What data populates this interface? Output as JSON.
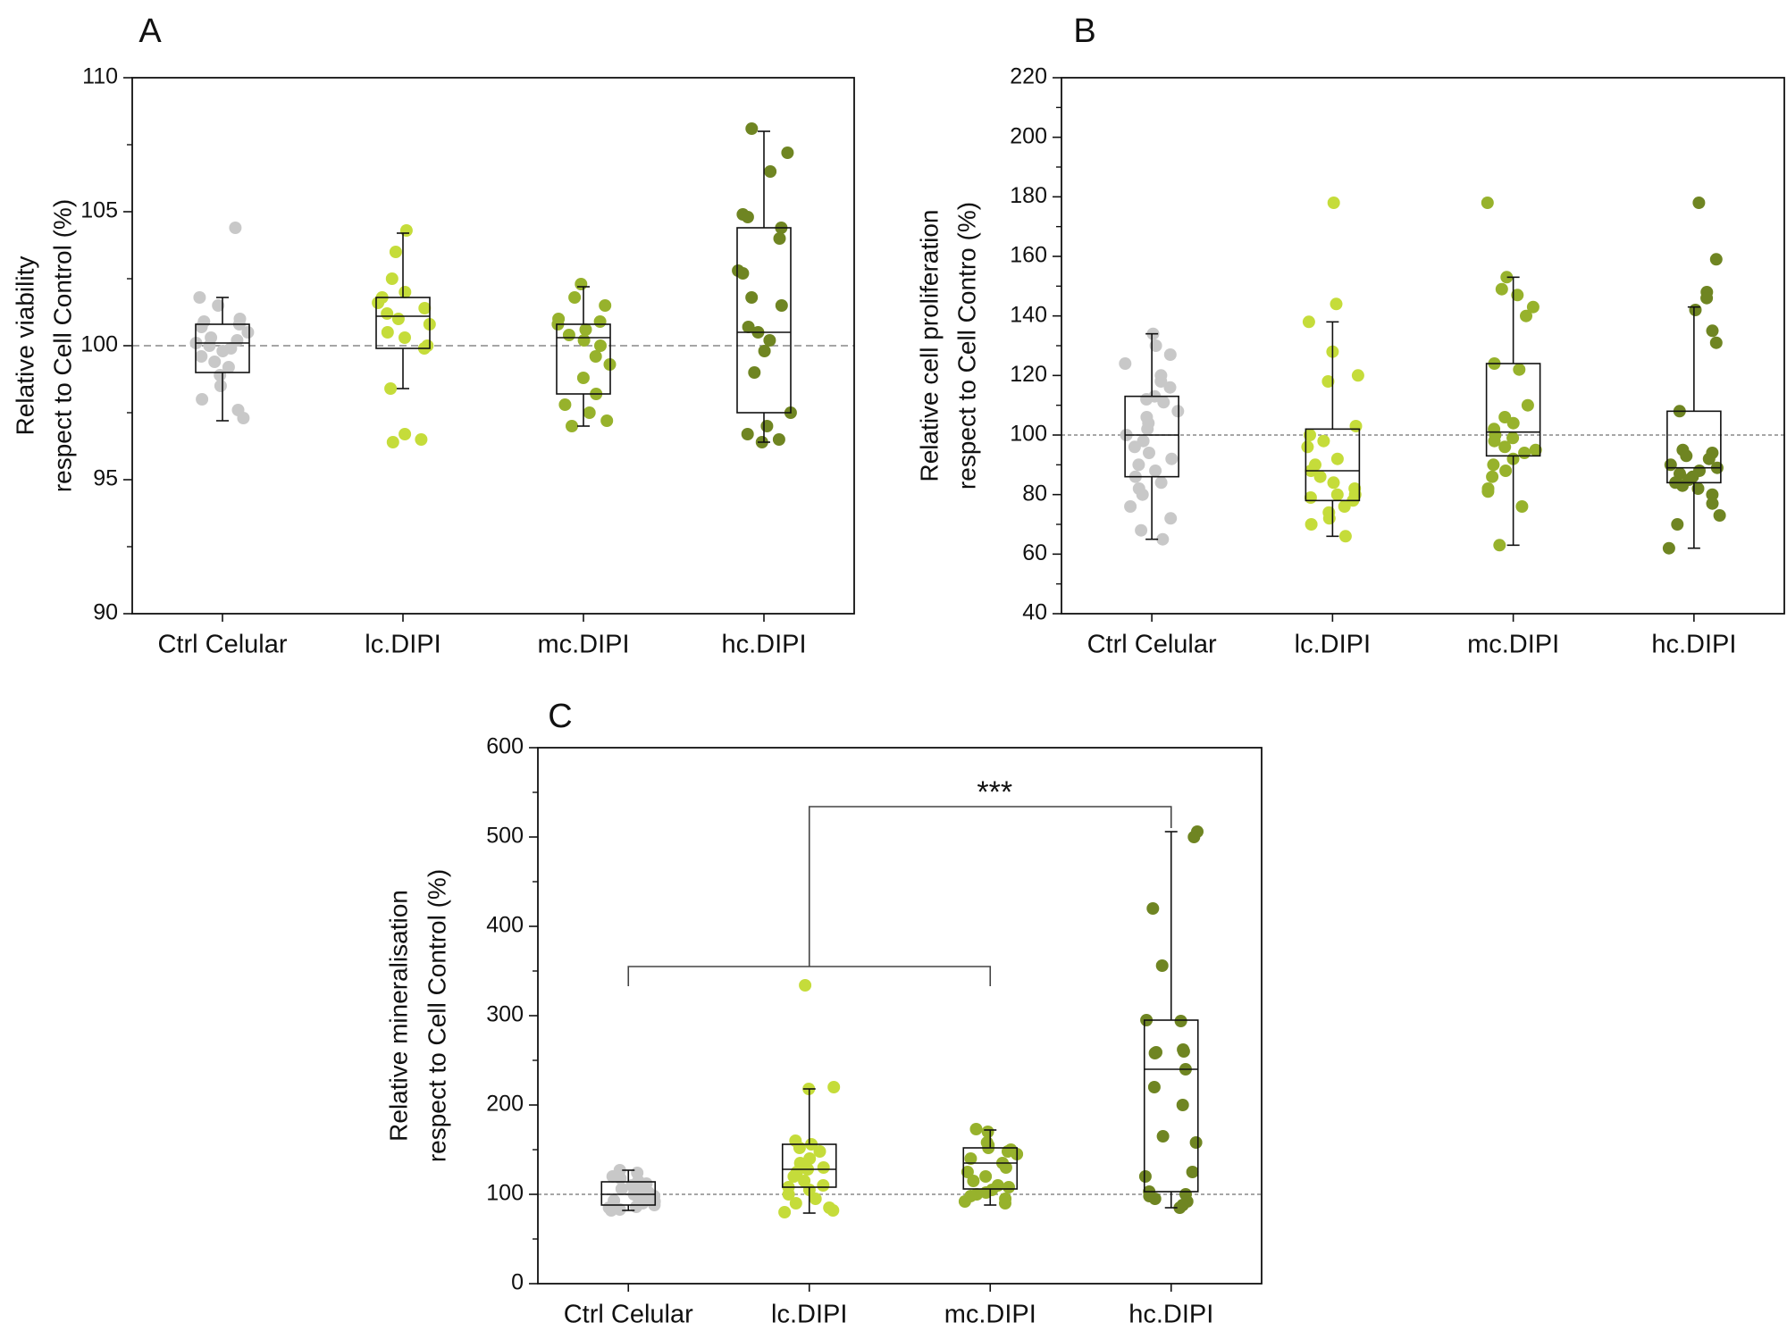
{
  "figure": {
    "colors": {
      "ctrl": "#c8c8c8",
      "lc": "#c5dc3a",
      "mc": "#97b22c",
      "hc": "#6f8522",
      "axis": "#111111",
      "refline": "#888888"
    }
  },
  "chart_data": [
    {
      "id": "A",
      "panel_label": "A",
      "type": "box",
      "ylabel_lines": [
        "Relative viability",
        "respect to Cell Control (%)"
      ],
      "categories": [
        "Ctrl Celular",
        "lc.DIPI",
        "mc.DIPI",
        "hc.DIPI"
      ],
      "ylim": [
        90,
        110
      ],
      "yticks": [
        90,
        95,
        100,
        105,
        110
      ],
      "yticklabels": [
        "90",
        "95",
        "100",
        "105",
        "110"
      ],
      "reference_line": 100,
      "boxes": [
        {
          "whisker_low": 97.2,
          "q1": 99.0,
          "median": 100.1,
          "q3": 100.8,
          "whisker_high": 101.8
        },
        {
          "whisker_low": 98.4,
          "q1": 99.9,
          "median": 101.1,
          "q3": 101.8,
          "whisker_high": 104.2
        },
        {
          "whisker_low": 97.0,
          "q1": 98.2,
          "median": 100.3,
          "q3": 100.8,
          "whisker_high": 102.2
        },
        {
          "whisker_low": 96.4,
          "q1": 97.5,
          "median": 100.5,
          "q3": 104.4,
          "whisker_high": 108.0
        }
      ],
      "points": [
        [
          104.4,
          101.8,
          101.5,
          101.0,
          100.9,
          100.8,
          100.7,
          100.5,
          100.3,
          100.2,
          100.1,
          100.0,
          99.9,
          99.8,
          99.6,
          99.4,
          99.2,
          98.9,
          98.5,
          98.0,
          97.6,
          97.3
        ],
        [
          104.3,
          103.5,
          102.5,
          102.0,
          101.8,
          101.6,
          101.4,
          101.2,
          101.0,
          100.8,
          100.5,
          100.3,
          100.0,
          99.9,
          98.4,
          96.7,
          96.5,
          96.4
        ],
        [
          102.3,
          101.8,
          101.5,
          101.0,
          100.9,
          100.8,
          100.6,
          100.4,
          100.2,
          100.0,
          99.6,
          99.3,
          98.8,
          98.2,
          97.8,
          97.5,
          97.2,
          97.0
        ],
        [
          108.1,
          107.2,
          106.5,
          104.9,
          104.8,
          104.4,
          104.0,
          102.8,
          102.7,
          101.8,
          101.5,
          100.7,
          100.5,
          100.2,
          99.8,
          99.0,
          97.5,
          97.0,
          96.7,
          96.5,
          96.4
        ]
      ]
    },
    {
      "id": "B",
      "panel_label": "B",
      "type": "box",
      "ylabel_lines": [
        "Relative cell proliferation",
        "respect to Cell Contro (%)"
      ],
      "categories": [
        "Ctrl Celular",
        "lc.DIPI",
        "mc.DIPI",
        "hc.DIPI"
      ],
      "ylim": [
        40,
        220
      ],
      "yticks": [
        40,
        60,
        80,
        100,
        120,
        140,
        160,
        180,
        200,
        220
      ],
      "yticklabels": [
        "40",
        "60",
        "80",
        "100",
        "120",
        "140",
        "160",
        "180",
        "200",
        "220"
      ],
      "reference_line": 100,
      "boxes": [
        {
          "whisker_low": 65,
          "q1": 86,
          "median": 100,
          "q3": 113,
          "whisker_high": 134
        },
        {
          "whisker_low": 66,
          "q1": 78,
          "median": 88,
          "q3": 102,
          "whisker_high": 138
        },
        {
          "whisker_low": 63,
          "q1": 93,
          "median": 101,
          "q3": 124,
          "whisker_high": 153
        },
        {
          "whisker_low": 62,
          "q1": 84,
          "median": 89,
          "q3": 108,
          "whisker_high": 143
        }
      ],
      "points": [
        [
          134,
          130,
          127,
          124,
          120,
          118,
          116,
          113,
          112,
          111,
          108,
          106,
          104,
          102,
          100,
          98,
          96,
          94,
          92,
          90,
          88,
          86,
          84,
          82,
          80,
          76,
          72,
          68,
          65
        ],
        [
          178,
          144,
          138,
          128,
          120,
          118,
          103,
          100,
          98,
          96,
          92,
          90,
          88,
          86,
          84,
          82,
          80,
          80,
          79,
          78,
          76,
          74,
          72,
          70,
          66
        ],
        [
          178,
          153,
          149,
          147,
          143,
          140,
          124,
          122,
          110,
          106,
          104,
          102,
          100,
          99,
          98,
          96,
          95,
          94,
          92,
          90,
          88,
          86,
          82,
          81,
          76,
          63
        ],
        [
          178,
          159,
          148,
          146,
          142,
          135,
          131,
          108,
          95,
          94,
          93,
          92,
          90,
          89,
          88,
          87,
          86,
          85,
          84,
          83,
          82,
          80,
          77,
          73,
          70,
          62
        ]
      ]
    },
    {
      "id": "C",
      "panel_label": "C",
      "type": "box",
      "ylabel_lines": [
        "Relative mineralisation",
        "respect to Cell Control (%)"
      ],
      "categories": [
        "Ctrl Celular",
        "lc.DIPI",
        "mc.DIPI",
        "hc.DIPI"
      ],
      "ylim": [
        0,
        600
      ],
      "yticks": [
        0,
        100,
        200,
        300,
        400,
        500,
        600
      ],
      "yticklabels": [
        "0",
        "100",
        "200",
        "300",
        "400",
        "500",
        "600"
      ],
      "reference_line": 100,
      "boxes": [
        {
          "whisker_low": 82,
          "q1": 88,
          "median": 100,
          "q3": 114,
          "whisker_high": 127
        },
        {
          "whisker_low": 79,
          "q1": 108,
          "median": 128,
          "q3": 156,
          "whisker_high": 218
        },
        {
          "whisker_low": 88,
          "q1": 106,
          "median": 135,
          "q3": 152,
          "whisker_high": 172
        },
        {
          "whisker_low": 85,
          "q1": 103,
          "median": 240,
          "q3": 295,
          "whisker_high": 506
        }
      ],
      "points": [
        [
          127,
          124,
          120,
          118,
          115,
          112,
          110,
          108,
          106,
          104,
          102,
          100,
          98,
          96,
          95,
          93,
          92,
          90,
          88,
          86,
          85,
          83,
          82
        ],
        [
          334,
          220,
          218,
          160,
          156,
          152,
          148,
          140,
          135,
          130,
          128,
          125,
          120,
          115,
          110,
          108,
          105,
          100,
          95,
          90,
          85,
          82,
          80
        ],
        [
          173,
          170,
          158,
          155,
          152,
          150,
          148,
          145,
          140,
          135,
          130,
          125,
          120,
          115,
          110,
          108,
          105,
          102,
          100,
          98,
          95,
          92,
          90
        ],
        [
          506,
          500,
          420,
          356,
          295,
          294,
          262,
          260,
          259,
          258,
          240,
          220,
          200,
          165,
          158,
          125,
          120,
          103,
          100,
          98,
          95,
          92,
          88,
          85
        ]
      ],
      "significance": {
        "label": "***",
        "group_bracket": [
          0,
          2
        ],
        "target": 3,
        "bracket_level": 355,
        "top_level": 534,
        "target_level": 510
      }
    }
  ]
}
